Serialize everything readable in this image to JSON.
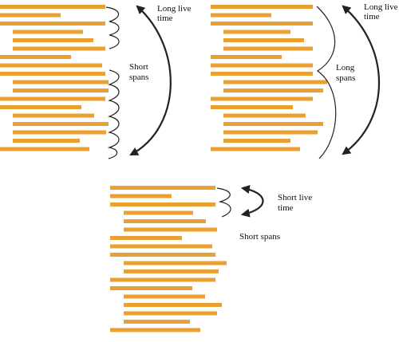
{
  "colors": {
    "bar": "#E9A030",
    "curve": "#222222"
  },
  "panels": [
    {
      "id": "top-left",
      "labels": {
        "arrow_label": [
          "Long live",
          "time"
        ],
        "span_label": [
          "Short",
          "spans"
        ]
      }
    },
    {
      "id": "top-right",
      "labels": {
        "arrow_label": [
          "Long live",
          "time"
        ],
        "span_label": [
          "Long",
          "spans"
        ]
      }
    },
    {
      "id": "bottom",
      "labels": {
        "arrow_label": [
          "Short live",
          "time"
        ],
        "span_label": [
          "Short spans"
        ]
      }
    }
  ]
}
